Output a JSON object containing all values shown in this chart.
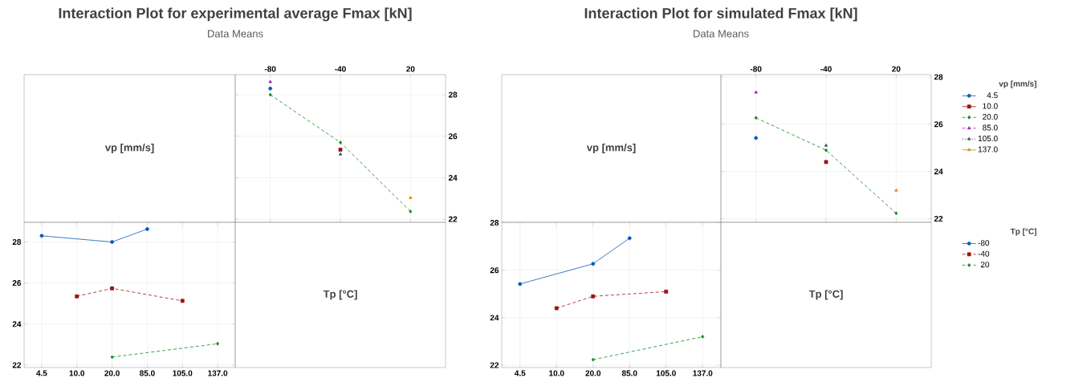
{
  "chart_data": [
    {
      "type": "other",
      "title": "Interaction Plot for experimental average Fmax [kN]",
      "subtitle": "Data Means",
      "annotations": [
        "vp [mm/s]"
      ]
    },
    {
      "type": "line",
      "categories": [
        "-80",
        "-40",
        "20"
      ],
      "ylim": [
        21.85,
        28.97
      ],
      "yticks": [
        22,
        24,
        26,
        28
      ],
      "grid": true,
      "series": [
        {
          "color": "#0a5cb5",
          "marker": "circle",
          "line_style": "solid",
          "values": [
            28.3,
            null,
            null
          ]
        },
        {
          "color": "#9b1114",
          "marker": "square",
          "line_style": "solid",
          "values": [
            null,
            25.35,
            null
          ]
        },
        {
          "color": "#0a8a1e",
          "marker": "diamond",
          "line_style": "dashed",
          "values": [
            28.0,
            25.7,
            22.37
          ]
        },
        {
          "color": "#9b1fbf",
          "marker": "triangle",
          "line_style": "dashed",
          "values": [
            28.62,
            null,
            null
          ]
        },
        {
          "color": "#505050",
          "marker": "triangle",
          "line_style": "dotted",
          "values": [
            null,
            25.13,
            null
          ]
        },
        {
          "color": "#dd8a00",
          "marker": "triangle",
          "line_style": "solid",
          "values": [
            null,
            null,
            23.03
          ]
        }
      ]
    },
    {
      "type": "line",
      "categories": [
        "4.5",
        "10.0",
        "20.0",
        "85.0",
        "105.0",
        "137.0"
      ],
      "ylim": [
        21.88,
        28.96
      ],
      "yticks": [
        22,
        24,
        26,
        28
      ],
      "grid": true,
      "series": [
        {
          "color": "#0a5cb5",
          "marker": "circle",
          "line_style": "solid",
          "values": [
            28.3,
            null,
            28.0,
            28.63,
            null,
            null
          ]
        },
        {
          "color": "#9b1114",
          "marker": "square",
          "line_style": "dashed",
          "values": [
            null,
            25.35,
            25.74,
            null,
            25.13,
            null
          ]
        },
        {
          "color": "#0a8a1e",
          "marker": "diamond",
          "line_style": "dashed",
          "values": [
            null,
            null,
            22.39,
            null,
            null,
            23.04
          ]
        }
      ]
    },
    {
      "type": "other",
      "annotations": [
        "Tp [°C]"
      ]
    },
    {
      "type": "other",
      "title": "Interaction Plot for simulated Fmax [kN]",
      "subtitle": "Data Means",
      "annotations": [
        "vp [mm/s]"
      ]
    },
    {
      "type": "line",
      "categories": [
        "-80",
        "-40",
        "20"
      ],
      "ylim": [
        21.85,
        28.1
      ],
      "yticks": [
        22,
        24,
        26,
        28
      ],
      "grid": true,
      "legend": "right",
      "legend_title": "vp [mm/s]",
      "series": [
        {
          "name": "4.5",
          "color": "#0a5cb5",
          "marker": "circle",
          "line_style": "solid",
          "values": [
            25.42,
            null,
            null
          ]
        },
        {
          "name": "10.0",
          "color": "#9b1114",
          "marker": "square",
          "line_style": "solid",
          "values": [
            null,
            24.4,
            null
          ]
        },
        {
          "name": "20.0",
          "color": "#0a8a1e",
          "marker": "diamond",
          "line_style": "dashed",
          "values": [
            26.27,
            24.9,
            22.23
          ]
        },
        {
          "name": "85.0",
          "color": "#9b1fbf",
          "marker": "triangle",
          "line_style": "dashed",
          "values": [
            27.35,
            null,
            null
          ]
        },
        {
          "name": "105.0",
          "color": "#505050",
          "marker": "triangle",
          "line_style": "dotted",
          "values": [
            null,
            25.1,
            null
          ]
        },
        {
          "name": "137.0",
          "color": "#dd8a00",
          "marker": "triangle",
          "line_style": "solid",
          "values": [
            null,
            null,
            23.2
          ]
        }
      ]
    },
    {
      "type": "line",
      "categories": [
        "4.5",
        "10.0",
        "20.0",
        "85.0",
        "105.0",
        "137.0"
      ],
      "ylim": [
        21.9,
        28.02
      ],
      "yticks": [
        22,
        24,
        26,
        28
      ],
      "grid": true,
      "legend": "right",
      "legend_title": "Tp [°C]",
      "series": [
        {
          "name": "-80",
          "color": "#0a5cb5",
          "marker": "circle",
          "line_style": "solid",
          "values": [
            25.42,
            null,
            26.27,
            27.35,
            null,
            null
          ]
        },
        {
          "name": "-40",
          "color": "#9b1114",
          "marker": "square",
          "line_style": "dashed",
          "values": [
            null,
            24.4,
            24.9,
            null,
            25.1,
            null
          ]
        },
        {
          "name": "20",
          "color": "#0a8a1e",
          "marker": "diamond",
          "line_style": "dashed",
          "values": [
            null,
            null,
            22.23,
            null,
            null,
            23.2
          ]
        }
      ]
    },
    {
      "type": "other",
      "annotations": [
        "Tp [°C]"
      ]
    }
  ]
}
